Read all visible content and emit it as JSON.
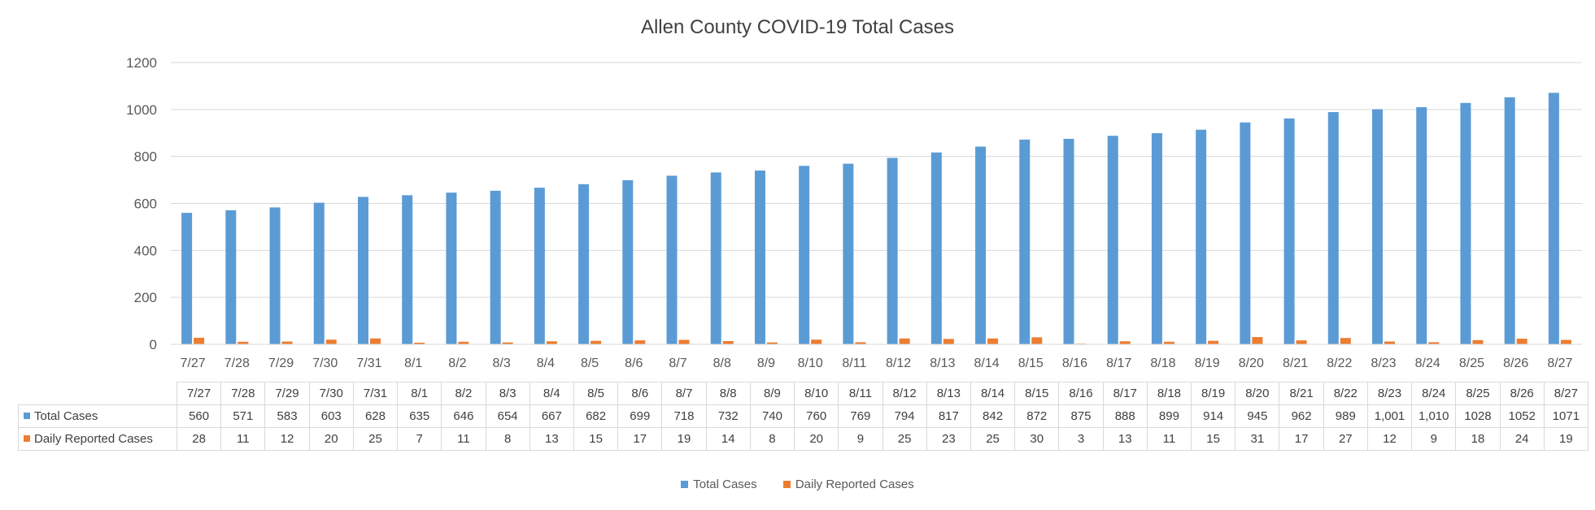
{
  "chart_data": {
    "type": "bar",
    "title": "Allen County COVID-19 Total Cases",
    "categories": [
      "7/27",
      "7/28",
      "7/29",
      "7/30",
      "7/31",
      "8/1",
      "8/2",
      "8/3",
      "8/4",
      "8/5",
      "8/6",
      "8/7",
      "8/8",
      "8/9",
      "8/10",
      "8/11",
      "8/12",
      "8/13",
      "8/14",
      "8/15",
      "8/16",
      "8/17",
      "8/18",
      "8/19",
      "8/20",
      "8/21",
      "8/22",
      "8/23",
      "8/24",
      "8/25",
      "8/26",
      "8/27"
    ],
    "series": [
      {
        "name": "Total Cases",
        "color": "#5b9bd5",
        "values": [
          560,
          571,
          583,
          603,
          628,
          635,
          646,
          654,
          667,
          682,
          699,
          718,
          732,
          740,
          760,
          769,
          794,
          817,
          842,
          872,
          875,
          888,
          899,
          914,
          945,
          962,
          989,
          1001,
          1010,
          1028,
          1052,
          1071
        ],
        "labels": [
          "560",
          "571",
          "583",
          "603",
          "628",
          "635",
          "646",
          "654",
          "667",
          "682",
          "699",
          "718",
          "732",
          "740",
          "760",
          "769",
          "794",
          "817",
          "842",
          "872",
          "875",
          "888",
          "899",
          "914",
          "945",
          "962",
          "989",
          "1,001",
          "1,010",
          "1028",
          "1052",
          "1071"
        ]
      },
      {
        "name": "Daily Reported Cases",
        "color": "#ed7d31",
        "values": [
          28,
          11,
          12,
          20,
          25,
          7,
          11,
          8,
          13,
          15,
          17,
          19,
          14,
          8,
          20,
          9,
          25,
          23,
          25,
          30,
          3,
          13,
          11,
          15,
          31,
          17,
          27,
          12,
          9,
          18,
          24,
          19
        ],
        "labels": [
          "28",
          "11",
          "12",
          "20",
          "25",
          "7",
          "11",
          "8",
          "13",
          "15",
          "17",
          "19",
          "14",
          "8",
          "20",
          "9",
          "25",
          "23",
          "25",
          "30",
          "3",
          "13",
          "11",
          "15",
          "31",
          "17",
          "27",
          "12",
          "9",
          "18",
          "24",
          "19"
        ]
      }
    ],
    "yticks": [
      "0",
      "200",
      "400",
      "600",
      "800",
      "1000",
      "1200"
    ],
    "ylim": [
      0,
      1200
    ],
    "grid": true,
    "legend_position": "bottom",
    "data_table": true
  }
}
